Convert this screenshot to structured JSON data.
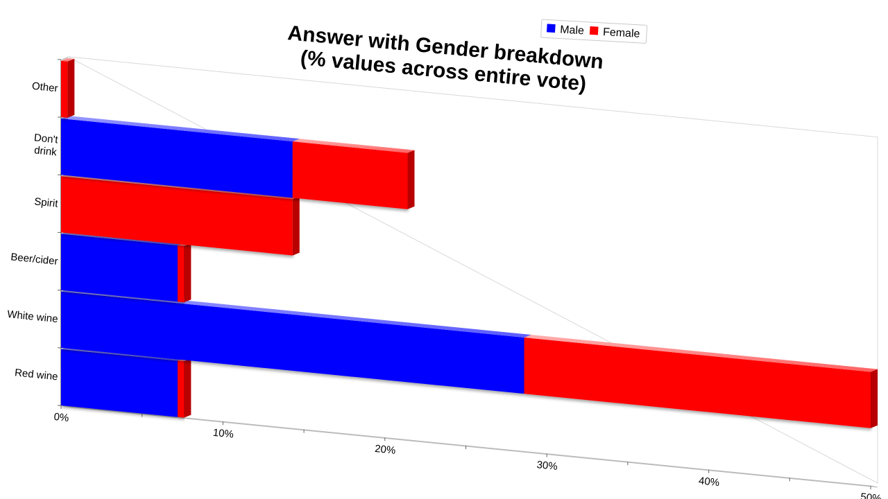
{
  "chart_data": {
    "type": "bar",
    "orientation": "horizontal",
    "stacked": true,
    "title": [
      "Answer with Gender breakdown",
      "(% values across entire vote)"
    ],
    "categories": [
      "Red wine",
      "White wine",
      "Beer/cider",
      "Spirit",
      "Don't drink",
      "Other"
    ],
    "series": [
      {
        "name": "Male",
        "color": "#0000ff",
        "values": [
          7.2,
          28.6,
          7.2,
          0,
          14.3,
          0
        ]
      },
      {
        "name": "Female",
        "color": "#ff0000",
        "values": [
          0.4,
          21.4,
          0.4,
          14.3,
          7.1,
          0.4
        ]
      }
    ],
    "xlim": [
      0,
      50
    ],
    "xticks": [
      "0%",
      "10%",
      "20%",
      "30%",
      "40%",
      "50%"
    ],
    "legend_position": "top-right",
    "grid": false
  }
}
